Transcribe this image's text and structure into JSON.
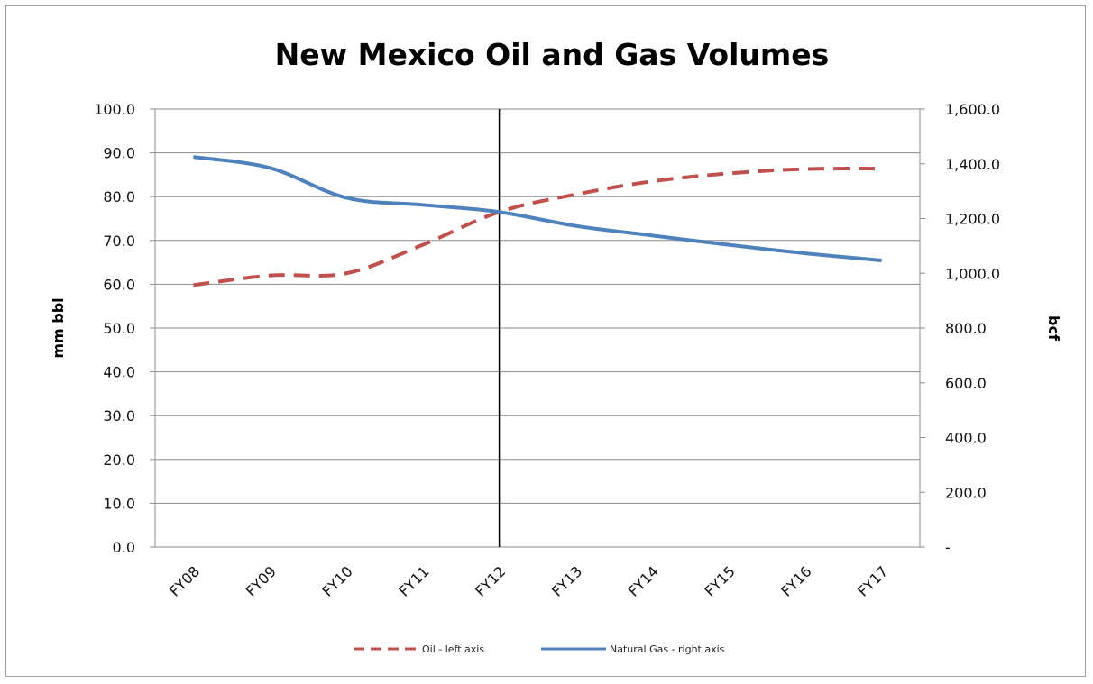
{
  "chart_data": {
    "type": "line",
    "title": "New Mexico Oil and Gas Volumes",
    "categories": [
      "FY08",
      "FY09",
      "FY10",
      "FY11",
      "FY12",
      "FY13",
      "FY14",
      "FY15",
      "FY16",
      "FY17"
    ],
    "y_left": {
      "label": "mm bbl",
      "range": [
        0,
        100
      ],
      "ticks": [
        0,
        10,
        20,
        30,
        40,
        50,
        60,
        70,
        80,
        90,
        100
      ],
      "tick_labels": [
        "0.0",
        "10.0",
        "20.0",
        "30.0",
        "40.0",
        "50.0",
        "60.0",
        "70.0",
        "80.0",
        "90.0",
        "100.0"
      ]
    },
    "y_right": {
      "label": "bcf",
      "range": [
        0,
        1600
      ],
      "ticks": [
        0,
        200,
        400,
        600,
        800,
        1000,
        1200,
        1400,
        1600
      ],
      "tick_labels": [
        "-",
        "200.0",
        "400.0",
        "600.0",
        "800.0",
        "1,000.0",
        "1,200.0",
        "1,400.0",
        "1,600.0"
      ]
    },
    "series": [
      {
        "name": "Oil - left axis",
        "axis": "left",
        "color": "#c0504d",
        "style": "dashed",
        "values": [
          59.8,
          62.0,
          62.5,
          69.0,
          76.5,
          80.5,
          83.5,
          85.3,
          86.3,
          86.4
        ]
      },
      {
        "name": "Natural Gas - right axis",
        "axis": "right",
        "color": "#4f81bd",
        "style": "solid",
        "values": [
          1425,
          1385,
          1276,
          1250,
          1224,
          1173,
          1138,
          1104,
          1073,
          1047
        ]
      }
    ],
    "marker_line": {
      "category": "FY12",
      "color": "#000000"
    },
    "grid": true,
    "legend_position": "bottom"
  }
}
